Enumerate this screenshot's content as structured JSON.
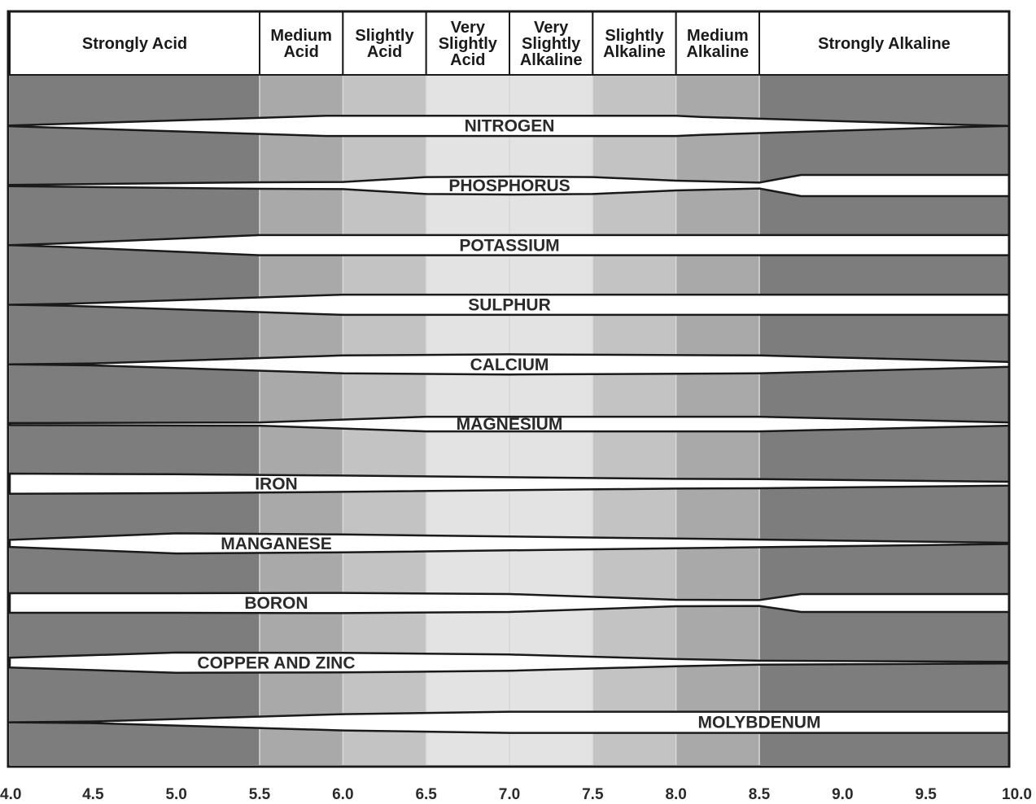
{
  "chart_data": {
    "type": "area",
    "title": "",
    "xlabel": "",
    "ylabel": "",
    "xlim": [
      4.0,
      10.0
    ],
    "x_ticks": [
      "4.0",
      "4.5",
      "5.0",
      "5.5",
      "6.0",
      "6.5",
      "7.0",
      "7.5",
      "8.0",
      "8.5",
      "9.0",
      "9.5",
      "10.0"
    ],
    "zones": [
      {
        "label": "Strongly Acid",
        "from": 4.0,
        "to": 5.5,
        "color": "#7d7d7d"
      },
      {
        "label": "Medium Acid",
        "from": 5.5,
        "to": 6.0,
        "color": "#a9a9a9"
      },
      {
        "label": "Slightly Acid",
        "from": 6.0,
        "to": 6.5,
        "color": "#c3c3c3"
      },
      {
        "label": "Very Slightly Acid",
        "from": 6.5,
        "to": 7.0,
        "color": "#e3e3e3"
      },
      {
        "label": "Very Slightly Alkaline",
        "from": 7.0,
        "to": 7.5,
        "color": "#e3e3e3"
      },
      {
        "label": "Slightly Alkaline",
        "from": 7.5,
        "to": 8.0,
        "color": "#c3c3c3"
      },
      {
        "label": "Medium Alkaline",
        "from": 8.0,
        "to": 8.5,
        "color": "#a9a9a9"
      },
      {
        "label": "Strongly Alkaline",
        "from": 8.5,
        "to": 10.0,
        "color": "#7d7d7d"
      }
    ],
    "series": [
      {
        "name": "NITROGEN",
        "label_x": 7.0,
        "x": [
          4.0,
          5.9,
          6.0,
          8.0,
          8.15,
          9.6,
          10.0
        ],
        "width": [
          0.02,
          0.62,
          0.62,
          0.62,
          0.55,
          0.1,
          0.0
        ]
      },
      {
        "name": "PHOSPHORUS",
        "label_x": 7.0,
        "x": [
          4.0,
          5.5,
          6.0,
          6.5,
          7.0,
          7.5,
          8.0,
          8.5,
          8.75,
          10.0
        ],
        "width": [
          0.04,
          0.2,
          0.22,
          0.52,
          0.55,
          0.52,
          0.3,
          0.18,
          0.65,
          0.65
        ]
      },
      {
        "name": "POTASSIUM",
        "label_x": 7.0,
        "x": [
          4.0,
          4.3,
          5.5,
          6.0,
          8.0,
          10.0
        ],
        "width": [
          0.0,
          0.1,
          0.62,
          0.62,
          0.62,
          0.62
        ]
      },
      {
        "name": "SULPHUR",
        "label_x": 7.0,
        "x": [
          4.0,
          4.35,
          6.0,
          8.0,
          10.0
        ],
        "width": [
          0.0,
          0.06,
          0.62,
          0.62,
          0.62
        ]
      },
      {
        "name": "CALCIUM",
        "label_x": 7.0,
        "x": [
          4.0,
          4.5,
          6.0,
          7.0,
          8.5,
          10.0
        ],
        "width": [
          0.0,
          0.06,
          0.55,
          0.62,
          0.55,
          0.15
        ]
      },
      {
        "name": "MAGNESIUM",
        "label_x": 7.0,
        "x": [
          4.0,
          5.5,
          6.5,
          8.5,
          10.0
        ],
        "width": [
          0.06,
          0.1,
          0.45,
          0.45,
          0.1
        ]
      },
      {
        "name": "IRON",
        "label_x": 5.6,
        "x": [
          4.0,
          5.0,
          6.0,
          8.0,
          8.5,
          10.0
        ],
        "width": [
          0.62,
          0.58,
          0.5,
          0.3,
          0.28,
          0.12
        ]
      },
      {
        "name": "MANGANESE",
        "label_x": 5.6,
        "x": [
          4.0,
          5.0,
          6.0,
          8.0,
          10.0
        ],
        "width": [
          0.22,
          0.62,
          0.55,
          0.3,
          0.04
        ]
      },
      {
        "name": "BORON",
        "label_x": 5.6,
        "x": [
          4.0,
          5.0,
          6.0,
          7.0,
          8.0,
          8.5,
          8.75,
          10.0
        ],
        "width": [
          0.6,
          0.6,
          0.62,
          0.55,
          0.2,
          0.18,
          0.55,
          0.55
        ]
      },
      {
        "name": "COPPER AND ZINC",
        "label_x": 5.6,
        "x": [
          4.0,
          5.0,
          6.0,
          7.0,
          8.0,
          8.5,
          10.0
        ],
        "width": [
          0.3,
          0.62,
          0.6,
          0.5,
          0.22,
          0.12,
          0.05
        ]
      },
      {
        "name": "MOLYBDENUM",
        "label_x": 8.5,
        "x": [
          4.0,
          4.5,
          6.0,
          7.0,
          8.0,
          10.0
        ],
        "width": [
          0.0,
          0.05,
          0.5,
          0.65,
          0.65,
          0.65
        ]
      }
    ]
  }
}
